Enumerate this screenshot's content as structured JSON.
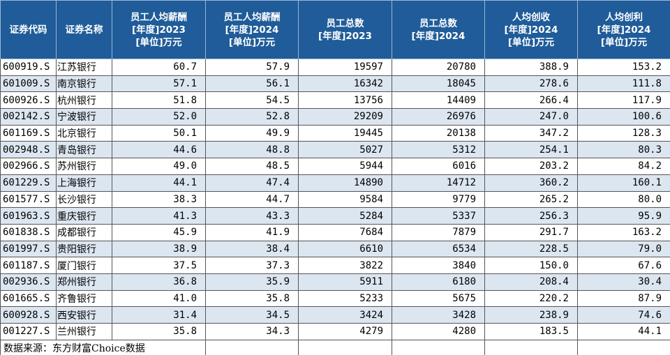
{
  "table": {
    "headers": [
      [
        "证券代码"
      ],
      [
        "证券名称"
      ],
      [
        "员工人均薪酬",
        "[年度]2023",
        "[单位]万元"
      ],
      [
        "员工人均薪酬",
        "[年度]2024",
        "[单位]万元"
      ],
      [
        "员工总数",
        "[年度]2023"
      ],
      [
        "员工总数",
        "[年度]2024"
      ],
      [
        "人均创收",
        "[年度]2024",
        "[单位]万元"
      ],
      [
        "人均创利",
        "[年度]2024",
        "[单位]万元"
      ]
    ],
    "rows": [
      [
        "600919.S",
        "江苏银行",
        "60.7",
        "57.9",
        "19597",
        "20780",
        "388.9",
        "153.2"
      ],
      [
        "601009.S",
        "南京银行",
        "57.1",
        "56.1",
        "16342",
        "18045",
        "278.6",
        "111.8"
      ],
      [
        "600926.S",
        "杭州银行",
        "51.8",
        "54.5",
        "13756",
        "14409",
        "266.4",
        "117.9"
      ],
      [
        "002142.S",
        "宁波银行",
        "52.0",
        "52.8",
        "29209",
        "26976",
        "247.0",
        "100.6"
      ],
      [
        "601169.S",
        "北京银行",
        "50.1",
        "49.9",
        "19445",
        "20138",
        "347.2",
        "128.3"
      ],
      [
        "002948.S",
        "青岛银行",
        "44.6",
        "48.8",
        "5027",
        "5312",
        "254.1",
        "80.3"
      ],
      [
        "002966.S",
        "苏州银行",
        "49.0",
        "48.5",
        "5944",
        "6016",
        "203.2",
        "84.2"
      ],
      [
        "601229.S",
        "上海银行",
        "44.1",
        "47.4",
        "14890",
        "14712",
        "360.2",
        "160.1"
      ],
      [
        "601577.S",
        "长沙银行",
        "38.3",
        "44.7",
        "9584",
        "9779",
        "265.2",
        "80.0"
      ],
      [
        "601963.S",
        "重庆银行",
        "41.3",
        "43.3",
        "5284",
        "5337",
        "256.3",
        "95.9"
      ],
      [
        "601838.S",
        "成都银行",
        "45.9",
        "41.9",
        "7684",
        "7879",
        "291.7",
        "163.2"
      ],
      [
        "601997.S",
        "贵阳银行",
        "38.9",
        "38.4",
        "6610",
        "6534",
        "228.5",
        "79.0"
      ],
      [
        "601187.S",
        "厦门银行",
        "37.5",
        "37.3",
        "3822",
        "3840",
        "150.0",
        "67.6"
      ],
      [
        "002936.S",
        "郑州银行",
        "36.8",
        "35.9",
        "5911",
        "6180",
        "208.4",
        "30.4"
      ],
      [
        "601665.S",
        "齐鲁银行",
        "41.0",
        "35.8",
        "5233",
        "5675",
        "220.2",
        "87.9"
      ],
      [
        "600928.S",
        "西安银行",
        "31.4",
        "34.5",
        "3424",
        "3428",
        "238.9",
        "74.6"
      ],
      [
        "001227.S",
        "兰州银行",
        "35.8",
        "34.3",
        "4279",
        "4280",
        "183.5",
        "44.1"
      ]
    ],
    "footnote": "数据来源：东方财富Choice数据"
  }
}
